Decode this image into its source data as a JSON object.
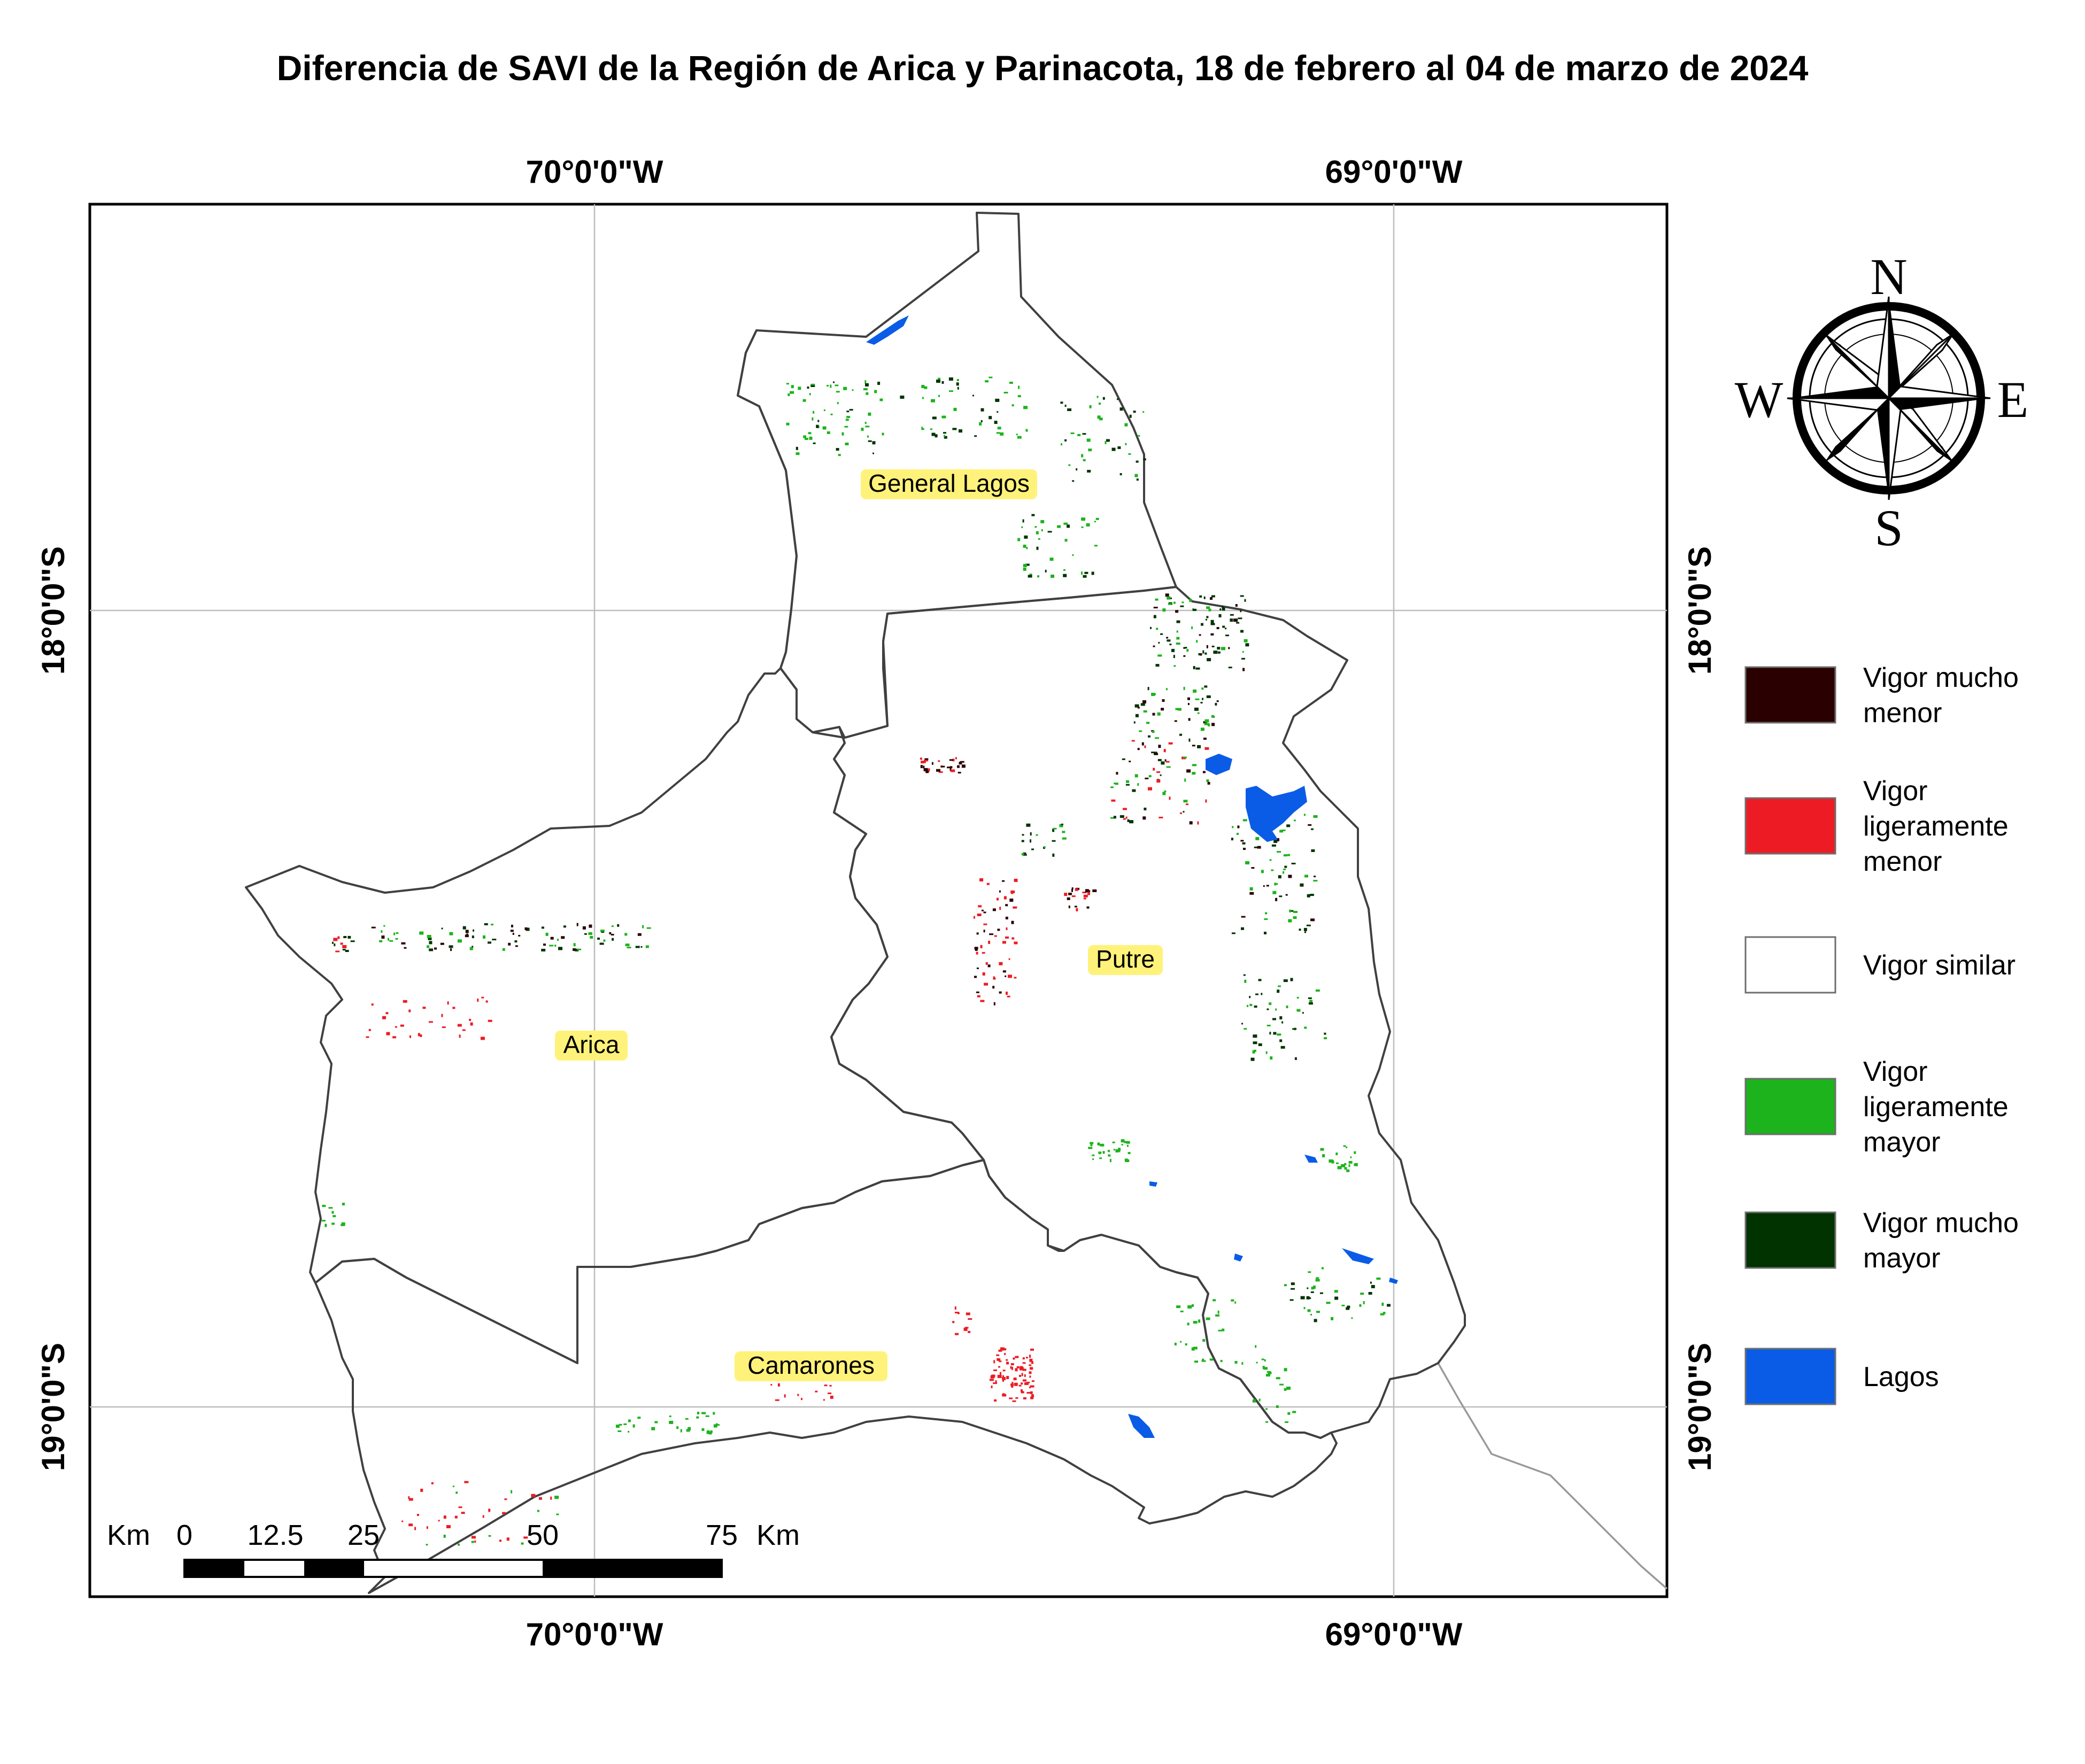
{
  "title": "Diferencia de SAVI de la Región de Arica y Parinacota, 18 de febrero al 04 de marzo de 2024",
  "coordinates": {
    "lon_70": "70°0'0\"W",
    "lon_69": "69°0'0\"W",
    "lat_18": "18°0'0\"S",
    "lat_19": "19°0'0\"S"
  },
  "communes": [
    {
      "name": "General Lagos"
    },
    {
      "name": "Putre"
    },
    {
      "name": "Arica"
    },
    {
      "name": "Camarones"
    }
  ],
  "compass": {
    "north": "N",
    "south": "S",
    "east": "E",
    "west": "W"
  },
  "scale_bar": {
    "unit": "Km",
    "ticks": [
      "0",
      "12.5",
      "25",
      "50",
      "75"
    ]
  },
  "legend": {
    "items": [
      {
        "lines": [
          "Vigor mucho",
          "menor"
        ],
        "color": "#2a0000"
      },
      {
        "lines": [
          "Vigor",
          "ligeramente",
          "menor"
        ],
        "color": "#ed1c24"
      },
      {
        "lines": [
          "Vigor similar"
        ],
        "color": "#ffffff"
      },
      {
        "lines": [
          "Vigor",
          "ligeramente",
          "mayor"
        ],
        "color": "#1db31d"
      },
      {
        "lines": [
          "Vigor mucho",
          "mayor"
        ],
        "color": "#003300"
      },
      {
        "lines": [
          "Lagos"
        ],
        "color": "#0a5ce6"
      }
    ]
  }
}
